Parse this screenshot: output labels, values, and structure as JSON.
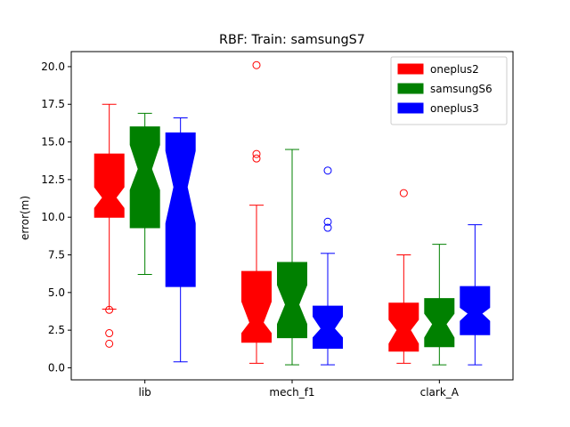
{
  "chart_data": {
    "type": "boxplot",
    "title": "RBF: Train: samsungS7",
    "xlabel": "",
    "ylabel": "error(m)",
    "ylim": [
      -0.8,
      21.0
    ],
    "yticks": [
      0.0,
      2.5,
      5.0,
      7.5,
      10.0,
      12.5,
      15.0,
      17.5,
      20.0
    ],
    "ytick_labels": [
      "0.0",
      "2.5",
      "5.0",
      "7.5",
      "10.0",
      "12.5",
      "15.0",
      "17.5",
      "20.0"
    ],
    "categories": [
      "lib",
      "mech_f1",
      "clark_A"
    ],
    "notched": true,
    "legend_position": "top-right",
    "series": [
      {
        "name": "oneplus2",
        "color": "#ff0000",
        "boxes": [
          {
            "whislo": 3.9,
            "q1": 10.0,
            "notchlo": 10.6,
            "med": 11.3,
            "notchhi": 12.0,
            "q3": 14.2,
            "whishi": 17.5,
            "fliers": [
              3.85,
              2.3,
              1.6
            ]
          },
          {
            "whislo": 0.3,
            "q1": 1.7,
            "notchlo": 2.3,
            "med": 3.0,
            "notchhi": 4.4,
            "q3": 6.4,
            "whishi": 10.8,
            "fliers": [
              20.1,
              14.2,
              13.9
            ]
          },
          {
            "whislo": 0.3,
            "q1": 1.1,
            "notchlo": 1.6,
            "med": 2.5,
            "notchhi": 3.2,
            "q3": 4.3,
            "whishi": 7.5,
            "fliers": [
              11.6
            ]
          }
        ]
      },
      {
        "name": "samsungS6",
        "color": "#008000",
        "boxes": [
          {
            "whislo": 6.2,
            "q1": 9.3,
            "notchlo": 11.8,
            "med": 13.2,
            "notchhi": 14.8,
            "q3": 16.0,
            "whishi": 16.9,
            "fliers": []
          },
          {
            "whislo": 0.2,
            "q1": 2.0,
            "notchlo": 2.9,
            "med": 4.2,
            "notchhi": 5.5,
            "q3": 7.0,
            "whishi": 14.5,
            "fliers": []
          },
          {
            "whislo": 0.2,
            "q1": 1.4,
            "notchlo": 2.0,
            "med": 2.9,
            "notchhi": 3.6,
            "q3": 4.6,
            "whishi": 8.2,
            "fliers": []
          }
        ]
      },
      {
        "name": "oneplus3",
        "color": "#0000ff",
        "boxes": [
          {
            "whislo": 0.4,
            "q1": 5.4,
            "notchlo": 9.6,
            "med": 12.0,
            "notchhi": 14.4,
            "q3": 15.6,
            "whishi": 16.6,
            "fliers": []
          },
          {
            "whislo": 0.2,
            "q1": 1.3,
            "notchlo": 2.0,
            "med": 2.6,
            "notchhi": 3.4,
            "q3": 4.1,
            "whishi": 7.6,
            "fliers": [
              13.1,
              9.7,
              9.3
            ]
          },
          {
            "whislo": 0.2,
            "q1": 2.2,
            "notchlo": 3.1,
            "med": 3.6,
            "notchhi": 4.0,
            "q3": 5.4,
            "whishi": 9.5,
            "fliers": []
          }
        ]
      }
    ]
  }
}
